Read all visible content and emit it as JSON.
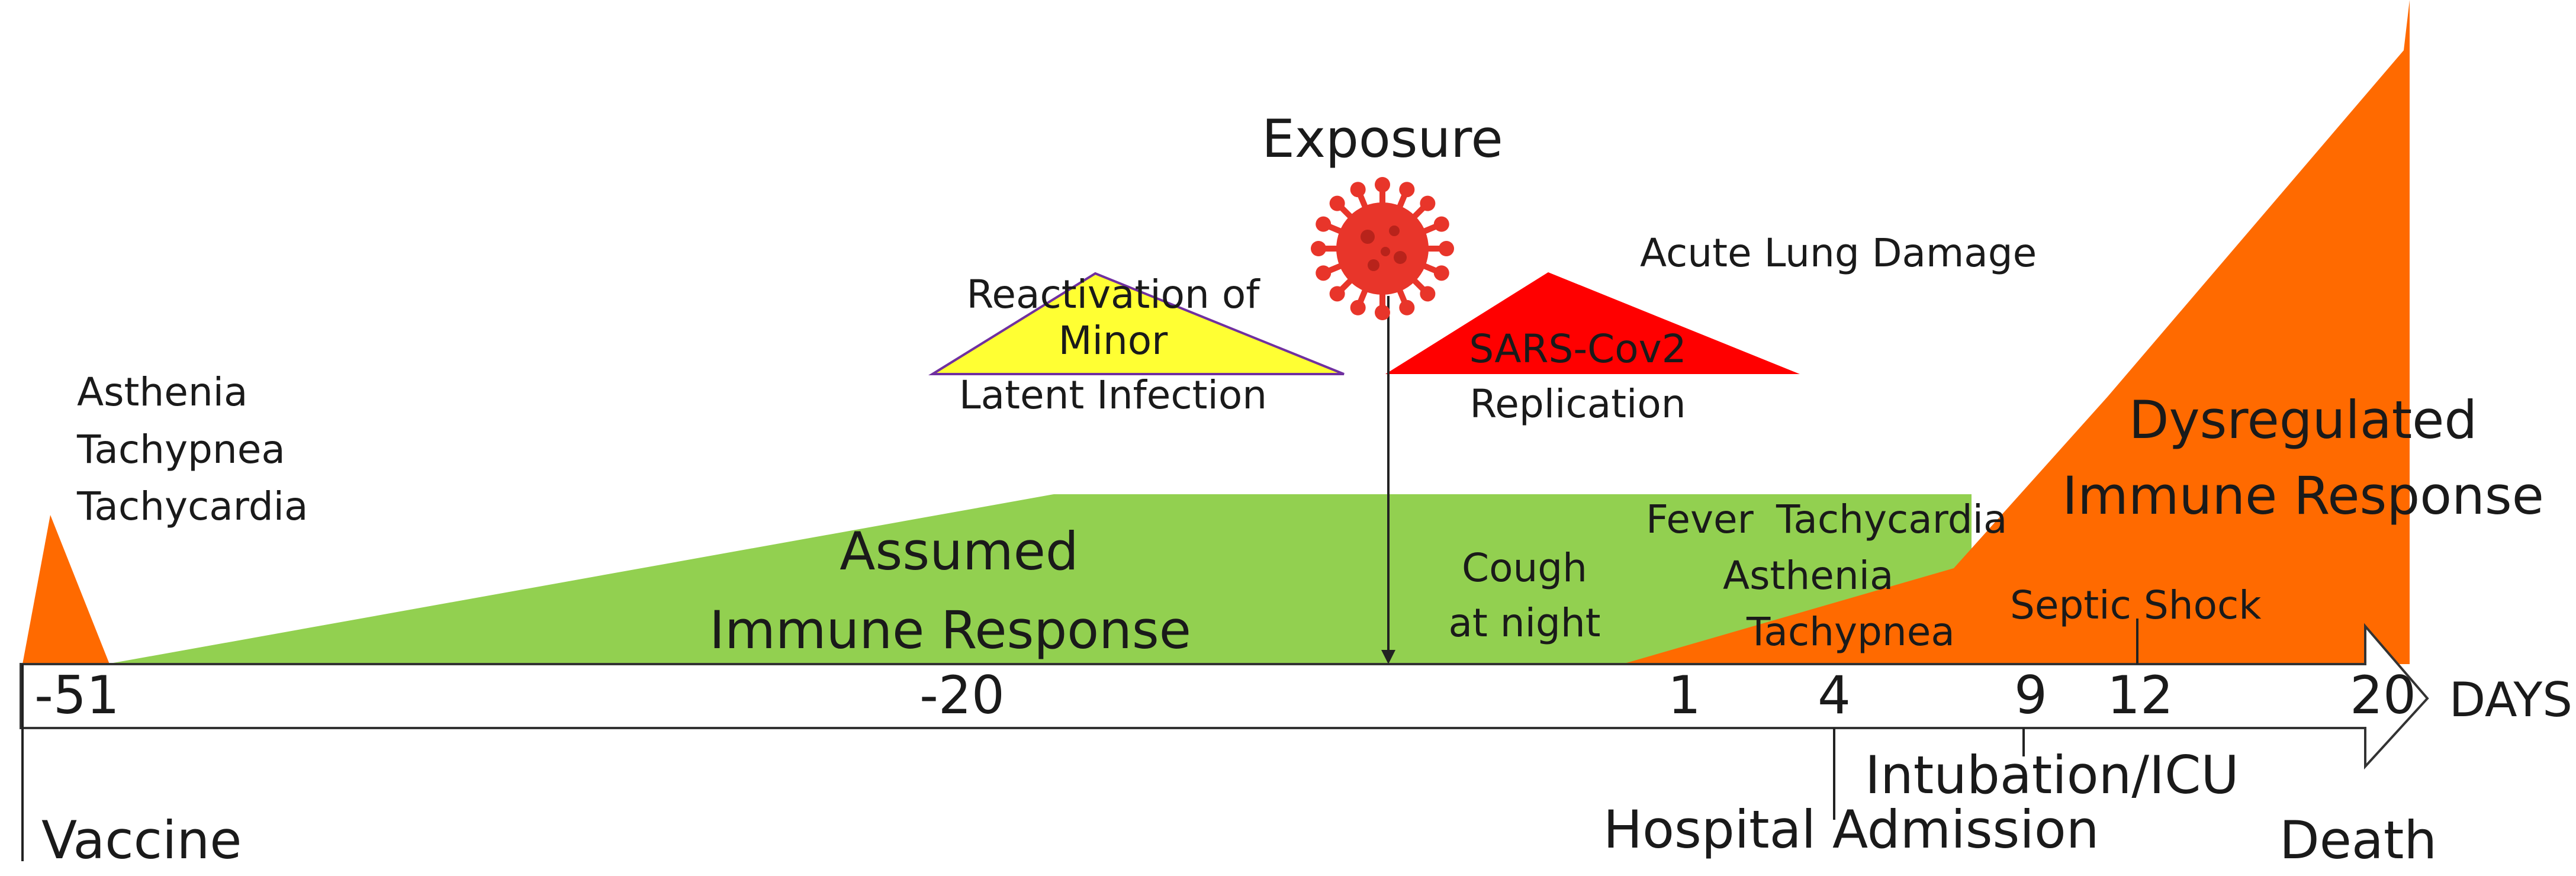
{
  "timeline": {
    "unit_label": "DAYS",
    "ticks": [
      "-51",
      "-20",
      "1",
      "4",
      "9",
      "12",
      "20"
    ]
  },
  "events": {
    "vaccine": "Vaccine",
    "hospital": "Hospital Admission",
    "intubation": "Intubation/ICU",
    "death": "Death",
    "exposure": "Exposure"
  },
  "vaccine_symptoms": [
    "Asthenia",
    "Tachypnea",
    "Tachycardia"
  ],
  "green_region": {
    "line1": "Assumed",
    "line2": "Immune Response"
  },
  "reactivation": {
    "line1": "Reactivation of",
    "line2": "Minor",
    "line3": "Latent Infection"
  },
  "sars": {
    "top": "Acute Lung Damage",
    "inside": "SARS-Cov2",
    "below": "Replication"
  },
  "early_symptoms": {
    "cough": [
      "Cough",
      "at night"
    ]
  },
  "symptoms": {
    "fever": "Fever",
    "tachycardia": "Tachycardia",
    "asthenia": "Asthenia",
    "tachypnea": "Tachypnea",
    "septic": "Septic Shock"
  },
  "orange_region": {
    "line1": "Dysregulated",
    "line2": "Immune Response"
  },
  "colors": {
    "green": "#92d050",
    "orange": "#ff6a00",
    "yellow": "#ffff33",
    "red": "#ff0000",
    "virus": "#e8352a",
    "purple": "#7030a0"
  }
}
